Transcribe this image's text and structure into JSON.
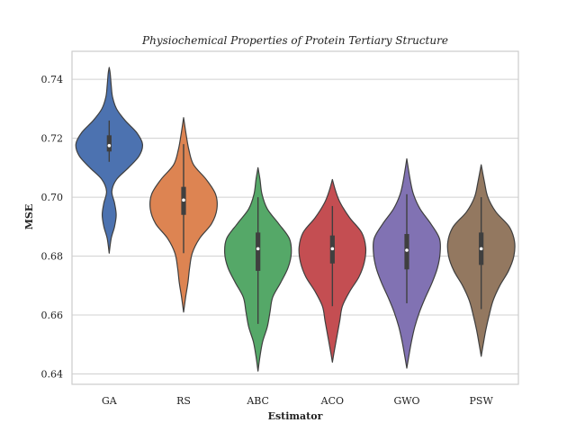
{
  "chart_data": {
    "type": "violin",
    "title": "Physiochemical Properties of Protein Tertiary Structure",
    "xlabel": "Estimator",
    "ylabel": "MSE",
    "ylim": [
      0.6365,
      0.7495
    ],
    "yticks": [
      0.64,
      0.66,
      0.68,
      0.7,
      0.72,
      0.74
    ],
    "ytick_labels": [
      "0.64",
      "0.66",
      "0.68",
      "0.70",
      "0.72",
      "0.74"
    ],
    "grid": "horizontal",
    "categories": [
      "GA",
      "RS",
      "ABC",
      "ACO",
      "GWO",
      "PSW"
    ],
    "colors": [
      "#4c72b0",
      "#dd8452",
      "#55a868",
      "#c44e52",
      "#8172b3",
      "#937860"
    ],
    "series": [
      {
        "category": "GA",
        "min": 0.681,
        "max": 0.744,
        "whisker_low": 0.712,
        "whisker_high": 0.726,
        "q1": 0.7155,
        "median": 0.7175,
        "q3": 0.721,
        "density": [
          [
            0.681,
            0.0
          ],
          [
            0.686,
            0.06
          ],
          [
            0.69,
            0.16
          ],
          [
            0.694,
            0.21
          ],
          [
            0.698,
            0.16
          ],
          [
            0.702,
            0.08
          ],
          [
            0.706,
            0.22
          ],
          [
            0.71,
            0.58
          ],
          [
            0.714,
            0.9
          ],
          [
            0.718,
            1.0
          ],
          [
            0.722,
            0.82
          ],
          [
            0.726,
            0.48
          ],
          [
            0.73,
            0.22
          ],
          [
            0.734,
            0.1
          ],
          [
            0.738,
            0.06
          ],
          [
            0.742,
            0.03
          ],
          [
            0.744,
            0.0
          ]
        ]
      },
      {
        "category": "RS",
        "min": 0.661,
        "max": 0.727,
        "whisker_low": 0.681,
        "whisker_high": 0.718,
        "q1": 0.694,
        "median": 0.699,
        "q3": 0.7035,
        "density": [
          [
            0.661,
            0.0
          ],
          [
            0.666,
            0.06
          ],
          [
            0.671,
            0.13
          ],
          [
            0.676,
            0.18
          ],
          [
            0.681,
            0.26
          ],
          [
            0.686,
            0.48
          ],
          [
            0.691,
            0.84
          ],
          [
            0.696,
            1.0
          ],
          [
            0.701,
            0.96
          ],
          [
            0.706,
            0.68
          ],
          [
            0.711,
            0.3
          ],
          [
            0.716,
            0.16
          ],
          [
            0.721,
            0.08
          ],
          [
            0.727,
            0.0
          ]
        ]
      },
      {
        "category": "ABC",
        "min": 0.641,
        "max": 0.71,
        "whisker_low": 0.657,
        "whisker_high": 0.7,
        "q1": 0.675,
        "median": 0.6825,
        "q3": 0.688,
        "density": [
          [
            0.641,
            0.0
          ],
          [
            0.646,
            0.06
          ],
          [
            0.651,
            0.14
          ],
          [
            0.656,
            0.28
          ],
          [
            0.661,
            0.36
          ],
          [
            0.666,
            0.44
          ],
          [
            0.671,
            0.68
          ],
          [
            0.676,
            0.9
          ],
          [
            0.681,
            1.0
          ],
          [
            0.686,
            0.94
          ],
          [
            0.691,
            0.62
          ],
          [
            0.696,
            0.28
          ],
          [
            0.701,
            0.12
          ],
          [
            0.706,
            0.06
          ],
          [
            0.71,
            0.0
          ]
        ]
      },
      {
        "category": "ACO",
        "min": 0.644,
        "max": 0.706,
        "whisker_low": 0.663,
        "whisker_high": 0.697,
        "q1": 0.6775,
        "median": 0.6825,
        "q3": 0.687,
        "density": [
          [
            0.644,
            0.0
          ],
          [
            0.648,
            0.06
          ],
          [
            0.653,
            0.14
          ],
          [
            0.658,
            0.22
          ],
          [
            0.663,
            0.3
          ],
          [
            0.668,
            0.52
          ],
          [
            0.673,
            0.8
          ],
          [
            0.678,
            0.96
          ],
          [
            0.683,
            1.0
          ],
          [
            0.688,
            0.88
          ],
          [
            0.693,
            0.52
          ],
          [
            0.698,
            0.24
          ],
          [
            0.702,
            0.1
          ],
          [
            0.706,
            0.0
          ]
        ]
      },
      {
        "category": "GWO",
        "min": 0.642,
        "max": 0.713,
        "whisker_low": 0.664,
        "whisker_high": 0.701,
        "q1": 0.6755,
        "median": 0.682,
        "q3": 0.6875,
        "density": [
          [
            0.642,
            0.0
          ],
          [
            0.646,
            0.06
          ],
          [
            0.651,
            0.14
          ],
          [
            0.656,
            0.24
          ],
          [
            0.661,
            0.38
          ],
          [
            0.666,
            0.56
          ],
          [
            0.671,
            0.76
          ],
          [
            0.676,
            0.92
          ],
          [
            0.681,
            1.0
          ],
          [
            0.686,
            0.98
          ],
          [
            0.691,
            0.72
          ],
          [
            0.696,
            0.4
          ],
          [
            0.701,
            0.2
          ],
          [
            0.706,
            0.1
          ],
          [
            0.713,
            0.0
          ]
        ]
      },
      {
        "category": "PSW",
        "min": 0.646,
        "max": 0.711,
        "whisker_low": 0.662,
        "whisker_high": 0.7,
        "q1": 0.677,
        "median": 0.6825,
        "q3": 0.688,
        "density": [
          [
            0.646,
            0.0
          ],
          [
            0.65,
            0.06
          ],
          [
            0.655,
            0.14
          ],
          [
            0.66,
            0.24
          ],
          [
            0.665,
            0.36
          ],
          [
            0.67,
            0.56
          ],
          [
            0.675,
            0.82
          ],
          [
            0.68,
            0.98
          ],
          [
            0.685,
            1.0
          ],
          [
            0.69,
            0.84
          ],
          [
            0.695,
            0.44
          ],
          [
            0.7,
            0.2
          ],
          [
            0.705,
            0.1
          ],
          [
            0.711,
            0.0
          ]
        ]
      }
    ]
  }
}
